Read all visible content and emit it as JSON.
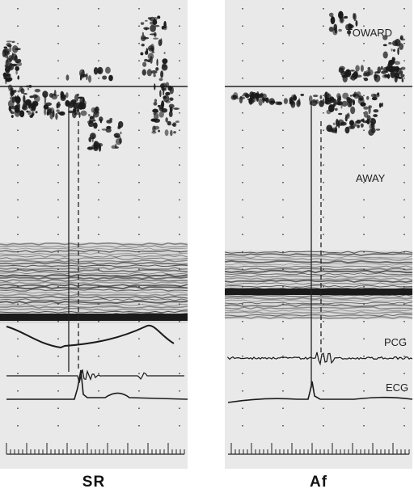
{
  "panels": [
    {
      "id": "sr",
      "caption": "SR"
    },
    {
      "id": "af",
      "caption": "Af"
    }
  ],
  "labels": {
    "toward": "TOWARD",
    "away": "AWAY",
    "pcg": "PCG",
    "ecg": "ECG"
  },
  "colors": {
    "background": "#e8e8e8",
    "trace": "#1a1a1a",
    "axis": "#222222"
  }
}
